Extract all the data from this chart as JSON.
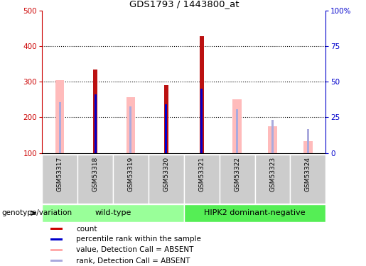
{
  "title": "GDS1793 / 1443800_at",
  "samples": [
    "GSM53317",
    "GSM53318",
    "GSM53319",
    "GSM53320",
    "GSM53321",
    "GSM53322",
    "GSM53323",
    "GSM53324"
  ],
  "red_bars": [
    0,
    335,
    0,
    290,
    428,
    0,
    0,
    0
  ],
  "pink_bars": [
    305,
    0,
    257,
    0,
    0,
    250,
    175,
    133
  ],
  "blue_bars": [
    0,
    265,
    0,
    237,
    280,
    0,
    0,
    0
  ],
  "light_blue_bars": [
    242,
    0,
    230,
    0,
    0,
    222,
    192,
    168
  ],
  "ylim_left": [
    100,
    500
  ],
  "ylim_right": [
    0,
    100
  ],
  "yticks_left": [
    100,
    200,
    300,
    400,
    500
  ],
  "yticks_right": [
    0,
    25,
    50,
    75,
    100
  ],
  "ytick_labels_right": [
    "0",
    "25",
    "50",
    "75",
    "100%"
  ],
  "grid_lines": [
    200,
    300,
    400
  ],
  "groups": [
    {
      "label": "wild-type",
      "start": 0,
      "end": 4
    },
    {
      "label": "HIPK2 dominant-negative",
      "start": 4,
      "end": 8
    }
  ],
  "group_label_prefix": "genotype/variation",
  "legend_items": [
    {
      "color": "#cc0000",
      "label": "count"
    },
    {
      "color": "#0000cc",
      "label": "percentile rank within the sample"
    },
    {
      "color": "#ffaaaa",
      "label": "value, Detection Call = ABSENT"
    },
    {
      "color": "#aaaadd",
      "label": "rank, Detection Call = ABSENT"
    }
  ],
  "pink_color": "#ffbbbb",
  "red_color": "#bb1111",
  "blue_color": "#0000cc",
  "light_blue_color": "#aaaadd",
  "axis_color_left": "#cc0000",
  "axis_color_right": "#0000cc",
  "sample_area_color": "#cccccc",
  "group_colors": [
    "#99ff99",
    "#55ee55"
  ],
  "fig_width": 5.15,
  "fig_height": 3.75,
  "dpi": 100
}
